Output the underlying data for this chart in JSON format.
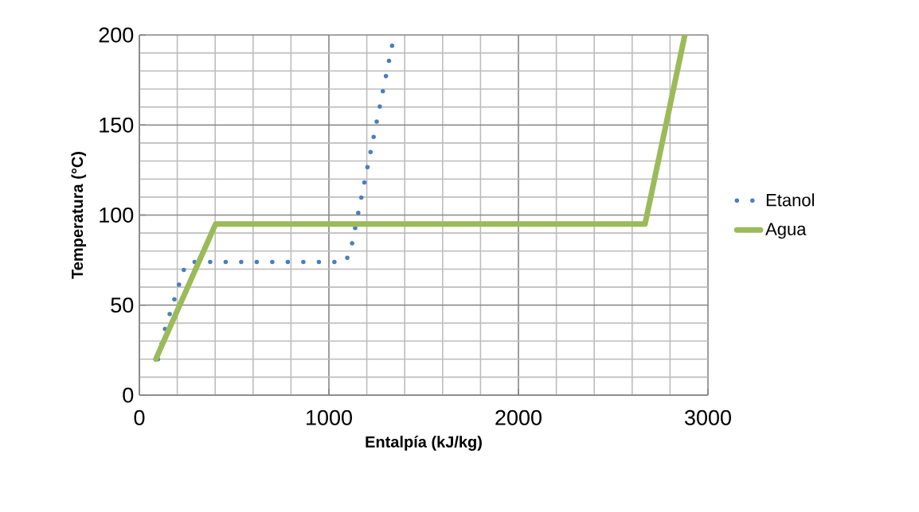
{
  "chart_data": {
    "type": "line",
    "xlabel": "Entalpía (kJ/kg)",
    "ylabel": "Temperatura (°C)",
    "xlim": [
      0,
      3000
    ],
    "xticks": [
      0,
      1000,
      2000,
      3000
    ],
    "ylim": [
      0,
      200
    ],
    "yticks": [
      0,
      50,
      100,
      150,
      200
    ],
    "grid": true,
    "legend": "right",
    "series": [
      {
        "name": "Etanol",
        "color": "#4a7ebb",
        "line_style": "dotted",
        "x": [
          98,
          136,
          163,
          214,
          242,
          260,
          1088,
          1116,
          1339
        ],
        "values": [
          20,
          37,
          46,
          63,
          72,
          74,
          74,
          81,
          197
        ]
      },
      {
        "name": "Agua",
        "color": "#9bbb59",
        "line_style": "solid",
        "x": [
          87,
          402,
          2668,
          2878
        ],
        "values": [
          20,
          95,
          95,
          200
        ]
      }
    ]
  }
}
